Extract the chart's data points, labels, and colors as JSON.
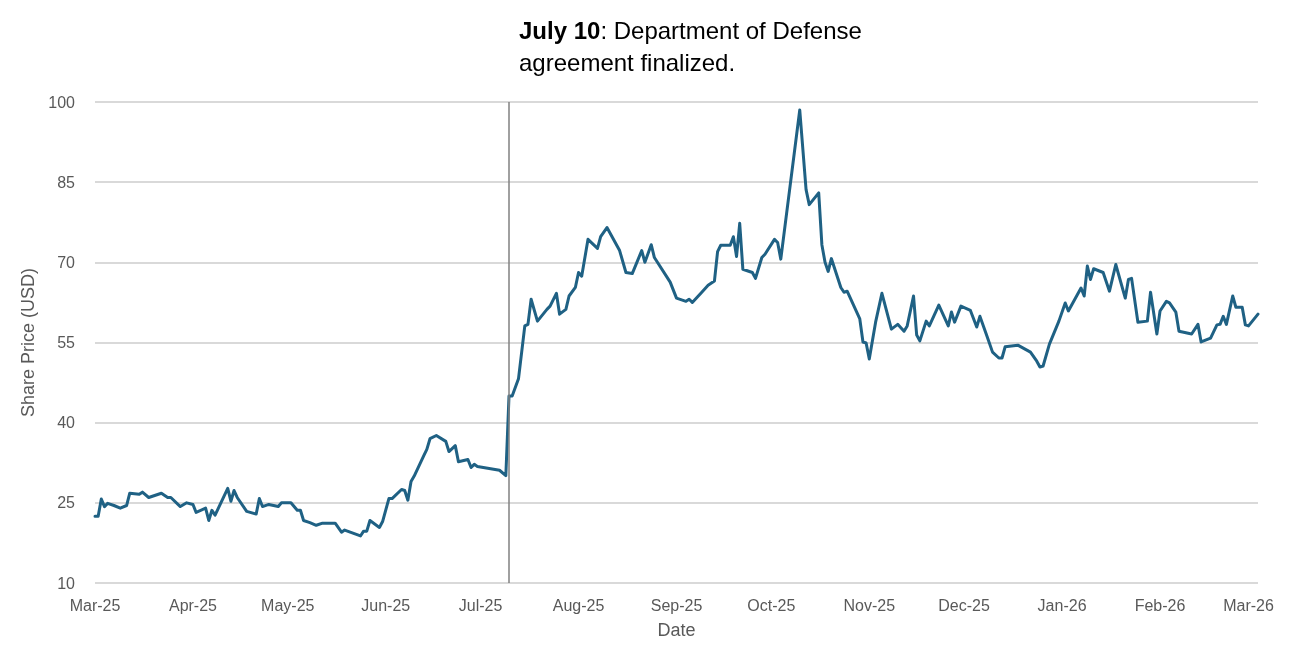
{
  "chart_data": {
    "type": "line",
    "xlabel": "Date",
    "ylabel": "Share Price (USD)",
    "x": [
      "2025-03-01",
      "2025-03-02",
      "2025-03-03",
      "2025-03-04",
      "2025-03-05",
      "2025-03-07",
      "2025-03-09",
      "2025-03-11",
      "2025-03-12",
      "2025-03-15",
      "2025-03-16",
      "2025-03-18",
      "2025-03-22",
      "2025-03-24",
      "2025-03-25",
      "2025-03-28",
      "2025-03-30",
      "2025-04-01",
      "2025-04-02",
      "2025-04-05",
      "2025-04-06",
      "2025-04-07",
      "2025-04-08",
      "2025-04-12",
      "2025-04-13",
      "2025-04-14",
      "2025-04-15",
      "2025-04-18",
      "2025-04-21",
      "2025-04-22",
      "2025-04-23",
      "2025-04-25",
      "2025-04-28",
      "2025-04-29",
      "2025-05-02",
      "2025-05-04",
      "2025-05-05",
      "2025-05-06",
      "2025-05-08",
      "2025-05-10",
      "2025-05-12",
      "2025-05-16",
      "2025-05-18",
      "2025-05-19",
      "2025-05-24",
      "2025-05-25",
      "2025-05-26",
      "2025-05-27",
      "2025-05-30",
      "2025-05-31",
      "2025-06-02",
      "2025-06-03",
      "2025-06-06",
      "2025-06-07",
      "2025-06-08",
      "2025-06-09",
      "2025-06-10",
      "2025-06-13",
      "2025-06-14",
      "2025-06-15",
      "2025-06-17",
      "2025-06-20",
      "2025-06-21",
      "2025-06-23",
      "2025-06-24",
      "2025-06-27",
      "2025-06-28",
      "2025-06-29",
      "2025-06-30",
      "2025-07-07",
      "2025-07-09",
      "2025-07-10",
      "2025-07-11",
      "2025-07-13",
      "2025-07-15",
      "2025-07-16",
      "2025-07-17",
      "2025-07-19",
      "2025-07-22",
      "2025-07-23",
      "2025-07-25",
      "2025-07-26",
      "2025-07-28",
      "2025-07-29",
      "2025-07-31",
      "2025-08-01",
      "2025-08-02",
      "2025-08-04",
      "2025-08-07",
      "2025-08-08",
      "2025-08-10",
      "2025-08-14",
      "2025-08-16",
      "2025-08-18",
      "2025-08-21",
      "2025-08-22",
      "2025-08-24",
      "2025-08-25",
      "2025-08-30",
      "2025-09-01",
      "2025-09-04",
      "2025-09-05",
      "2025-09-06",
      "2025-09-09",
      "2025-09-11",
      "2025-09-13",
      "2025-09-14",
      "2025-09-15",
      "2025-09-18",
      "2025-09-19",
      "2025-09-20",
      "2025-09-21",
      "2025-09-22",
      "2025-09-25",
      "2025-09-26",
      "2025-09-28",
      "2025-09-29",
      "2025-10-02",
      "2025-10-03",
      "2025-10-04",
      "2025-10-10",
      "2025-10-12",
      "2025-10-13",
      "2025-10-16",
      "2025-10-17",
      "2025-10-18",
      "2025-10-19",
      "2025-10-20",
      "2025-10-23",
      "2025-10-24",
      "2025-10-25",
      "2025-10-29",
      "2025-10-30",
      "2025-10-31",
      "2025-11-01",
      "2025-11-03",
      "2025-11-05",
      "2025-11-08",
      "2025-11-10",
      "2025-11-12",
      "2025-11-13",
      "2025-11-15",
      "2025-11-16",
      "2025-11-17",
      "2025-11-19",
      "2025-11-20",
      "2025-11-23",
      "2025-11-26",
      "2025-11-27",
      "2025-11-28",
      "2025-11-30",
      "2025-12-03",
      "2025-12-05",
      "2025-12-06",
      "2025-12-08",
      "2025-12-10",
      "2025-12-12",
      "2025-12-13",
      "2025-12-14",
      "2025-12-18",
      "2025-12-22",
      "2025-12-24",
      "2025-12-25",
      "2025-12-26",
      "2025-12-28",
      "2025-12-31",
      "2026-01-02",
      "2026-01-03",
      "2026-01-07",
      "2026-01-08",
      "2026-01-09",
      "2026-01-10",
      "2026-01-11",
      "2026-01-14",
      "2026-01-16",
      "2026-01-18",
      "2026-01-21",
      "2026-01-22",
      "2026-01-23",
      "2026-01-25",
      "2026-01-28",
      "2026-01-29",
      "2026-01-31",
      "2026-02-01",
      "2026-02-03",
      "2026-02-04",
      "2026-02-06",
      "2026-02-07",
      "2026-02-11",
      "2026-02-13",
      "2026-02-14",
      "2026-02-17",
      "2026-02-19",
      "2026-02-20",
      "2026-02-21",
      "2026-02-22",
      "2026-02-24",
      "2026-02-25",
      "2026-02-27",
      "2026-02-28",
      "2026-03-01",
      "2026-03-04"
    ],
    "series": [
      {
        "color": "#1f6184",
        "values": [
          22.5,
          22.5,
          25.7,
          24.3,
          24.9,
          24.5,
          24,
          24.5,
          26.8,
          26.6,
          27,
          26,
          26.8,
          26,
          26,
          24.3,
          25,
          24.7,
          23.2,
          24,
          21.7,
          23.6,
          22.7,
          27.7,
          25.3,
          27.3,
          26,
          23.4,
          22.9,
          25.8,
          24.3,
          24.7,
          24.3,
          25,
          25,
          23.6,
          23.6,
          21.7,
          21.3,
          20.8,
          21.2,
          21.2,
          19.5,
          19.9,
          18.8,
          19.7,
          19.7,
          21.7,
          20.4,
          21.5,
          25.8,
          25.8,
          27.5,
          27.3,
          25.5,
          29,
          30,
          33.8,
          35,
          37,
          37.6,
          36.5,
          34.6,
          35.7,
          32.7,
          33.1,
          31.6,
          32.2,
          31.8,
          31.1,
          30.1,
          45,
          45,
          48.2,
          58.1,
          58.4,
          63.1,
          59,
          61.2,
          61.8,
          64.2,
          60.3,
          61.2,
          63.7,
          65.3,
          68.1,
          67.4,
          74.3,
          72.6,
          74.8,
          76.5,
          72.2,
          68.1,
          67.9,
          72.2,
          70,
          73.3,
          70.9,
          66.3,
          63.3,
          62.7,
          63.1,
          62.5,
          64.4,
          65.7,
          66.5,
          72,
          73.2,
          73.2,
          74.8,
          71.1,
          77.3,
          68.7,
          68.1,
          67,
          70.9,
          71.5,
          74.3,
          73.7,
          70.6,
          98.5,
          83.6,
          80.8,
          83,
          73.3,
          70,
          68.3,
          70.7,
          65.3,
          64.4,
          64.6,
          59.4,
          55.1,
          54.9,
          51.9,
          58.8,
          64.2,
          57.5,
          58.4,
          57.1,
          58.1,
          63.7,
          56.4,
          55.3,
          59,
          58.1,
          62,
          58.1,
          60.7,
          58.8,
          61.8,
          61,
          57.9,
          59.9,
          56.6,
          53.2,
          52.1,
          52.1,
          54.2,
          54.5,
          53.2,
          51.5,
          50.4,
          50.6,
          54.7,
          59,
          62.4,
          60.9,
          65.2,
          63.7,
          69.3,
          66.8,
          68.8,
          68.1,
          64.6,
          69.6,
          63.3,
          66.8,
          67,
          58.8,
          59,
          64.4,
          56.6,
          60.9,
          62.7,
          62.4,
          60.7,
          57.1,
          56.6,
          58.4,
          55.1,
          55.8,
          58.3,
          58.4,
          59.9,
          58.4,
          63.7,
          61.6,
          61.6,
          58.3,
          58.1,
          60.3
        ]
      }
    ],
    "xlim": [
      "2025-03-01",
      "2026-03-04"
    ],
    "xticks": [
      {
        "value": "2025-03-01",
        "label": "Mar-25"
      },
      {
        "value": "2025-04-01",
        "label": "Apr-25"
      },
      {
        "value": "2025-05-01",
        "label": "May-25"
      },
      {
        "value": "2025-06-01",
        "label": "Jun-25"
      },
      {
        "value": "2025-07-01",
        "label": "Jul-25"
      },
      {
        "value": "2025-08-01",
        "label": "Aug-25"
      },
      {
        "value": "2025-09-01",
        "label": "Sep-25"
      },
      {
        "value": "2025-10-01",
        "label": "Oct-25"
      },
      {
        "value": "2025-11-01",
        "label": "Nov-25"
      },
      {
        "value": "2025-12-01",
        "label": "Dec-25"
      },
      {
        "value": "2026-01-01",
        "label": "Jan-26"
      },
      {
        "value": "2026-02-01",
        "label": "Feb-26"
      },
      {
        "value": "2026-03-01",
        "label": "Mar-26"
      }
    ],
    "ylim": [
      10,
      100
    ],
    "yticks": [
      10,
      25,
      40,
      55,
      70,
      85,
      100
    ],
    "grid": "y",
    "marker": "none",
    "line_style": "solid",
    "ref_lines": [
      {
        "axis": "x",
        "value": "2025-07-10",
        "label": "July 10: Department of Defense agreement finalized.",
        "color": "#808080"
      }
    ]
  }
}
